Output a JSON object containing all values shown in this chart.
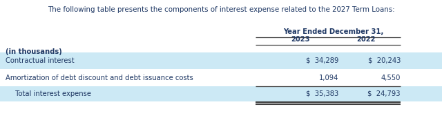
{
  "title": "The following table presents the components of interest expense related to the 2027 Term Loans:",
  "header_label": "Year Ended December 31,",
  "col_headers": [
    "2023",
    "2022"
  ],
  "row_label_col": "(in thousands)",
  "rows": [
    {
      "label": "Contractual interest",
      "val2023": "$  34,289",
      "val2022": "$  20,243",
      "shaded": true,
      "total": false
    },
    {
      "label": "Amortization of debt discount and debt issuance costs",
      "val2023": "1,094",
      "val2022": "4,550",
      "shaded": false,
      "total": false
    },
    {
      "label": "  Total interest expense",
      "val2023": "$  35,383",
      "val2022": "$  24,793",
      "shaded": true,
      "total": true
    }
  ],
  "shaded_color": "#cce9f5",
  "title_color": "#1f3864",
  "header_color": "#404040",
  "data_color": "#1f3864",
  "bg_color": "#ffffff",
  "font_size": 7.2,
  "title_font_size": 7.4
}
